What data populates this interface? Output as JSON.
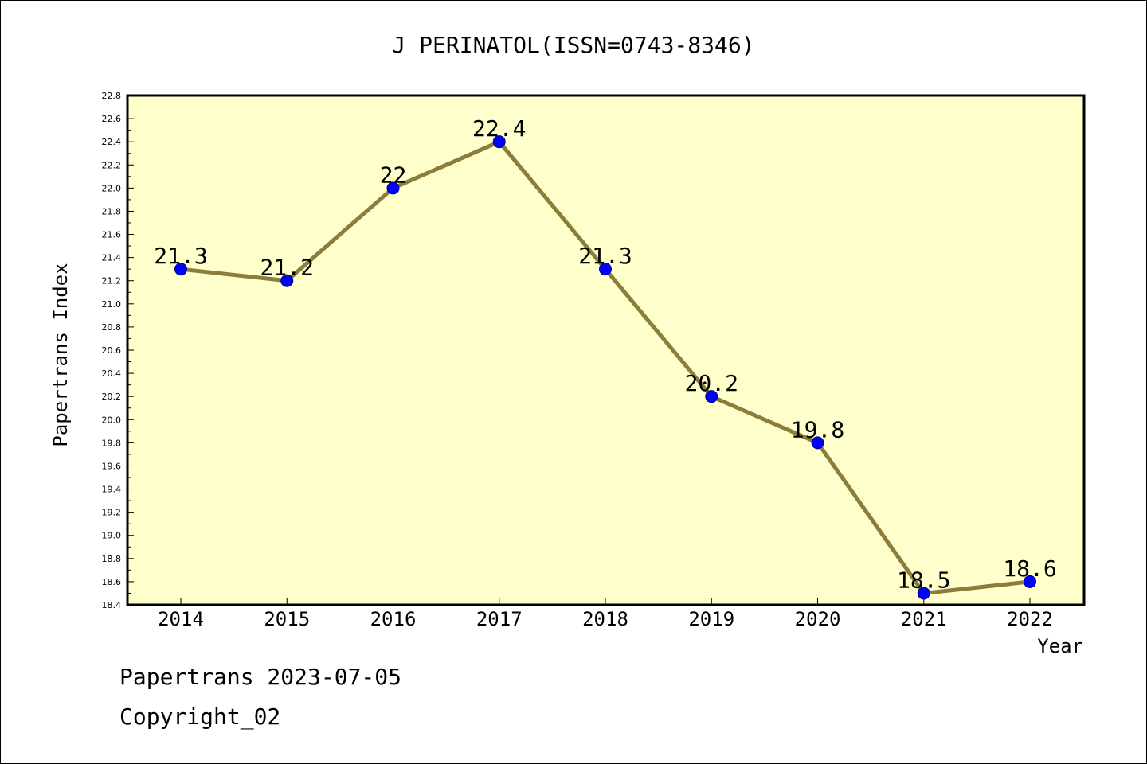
{
  "chart_data": {
    "type": "line",
    "title": "J PERINATOL(ISSN=0743-8346)",
    "xlabel": "Year",
    "ylabel": "Papertrans Index",
    "ylim": [
      18.4,
      22.8
    ],
    "yticks": [
      "18.4",
      "18.6",
      "18.8",
      "19.0",
      "19.2",
      "19.4",
      "19.6",
      "19.8",
      "20.0",
      "20.2",
      "20.4",
      "20.6",
      "20.8",
      "21.0",
      "21.2",
      "21.4",
      "21.6",
      "21.8",
      "22.0",
      "22.2",
      "22.4",
      "22.6",
      "22.8"
    ],
    "categories": [
      "2014",
      "2015",
      "2016",
      "2017",
      "2018",
      "2019",
      "2020",
      "2021",
      "2022"
    ],
    "series": [
      {
        "values": [
          21.3,
          21.2,
          22.0,
          22.4,
          21.3,
          20.2,
          19.8,
          18.5,
          18.6
        ],
        "labels": [
          "21.3",
          "21.2",
          "22",
          "22.4",
          "21.3",
          "20.2",
          "19.8",
          "18.5",
          "18.6"
        ]
      }
    ],
    "grid": false,
    "colors": {
      "plot_background": "#ffffcc",
      "line": "#8b7d3a",
      "marker": "#0000ff"
    }
  },
  "footer": {
    "source_date": "Papertrans 2023-07-05",
    "copyright": "Copyright_02"
  }
}
